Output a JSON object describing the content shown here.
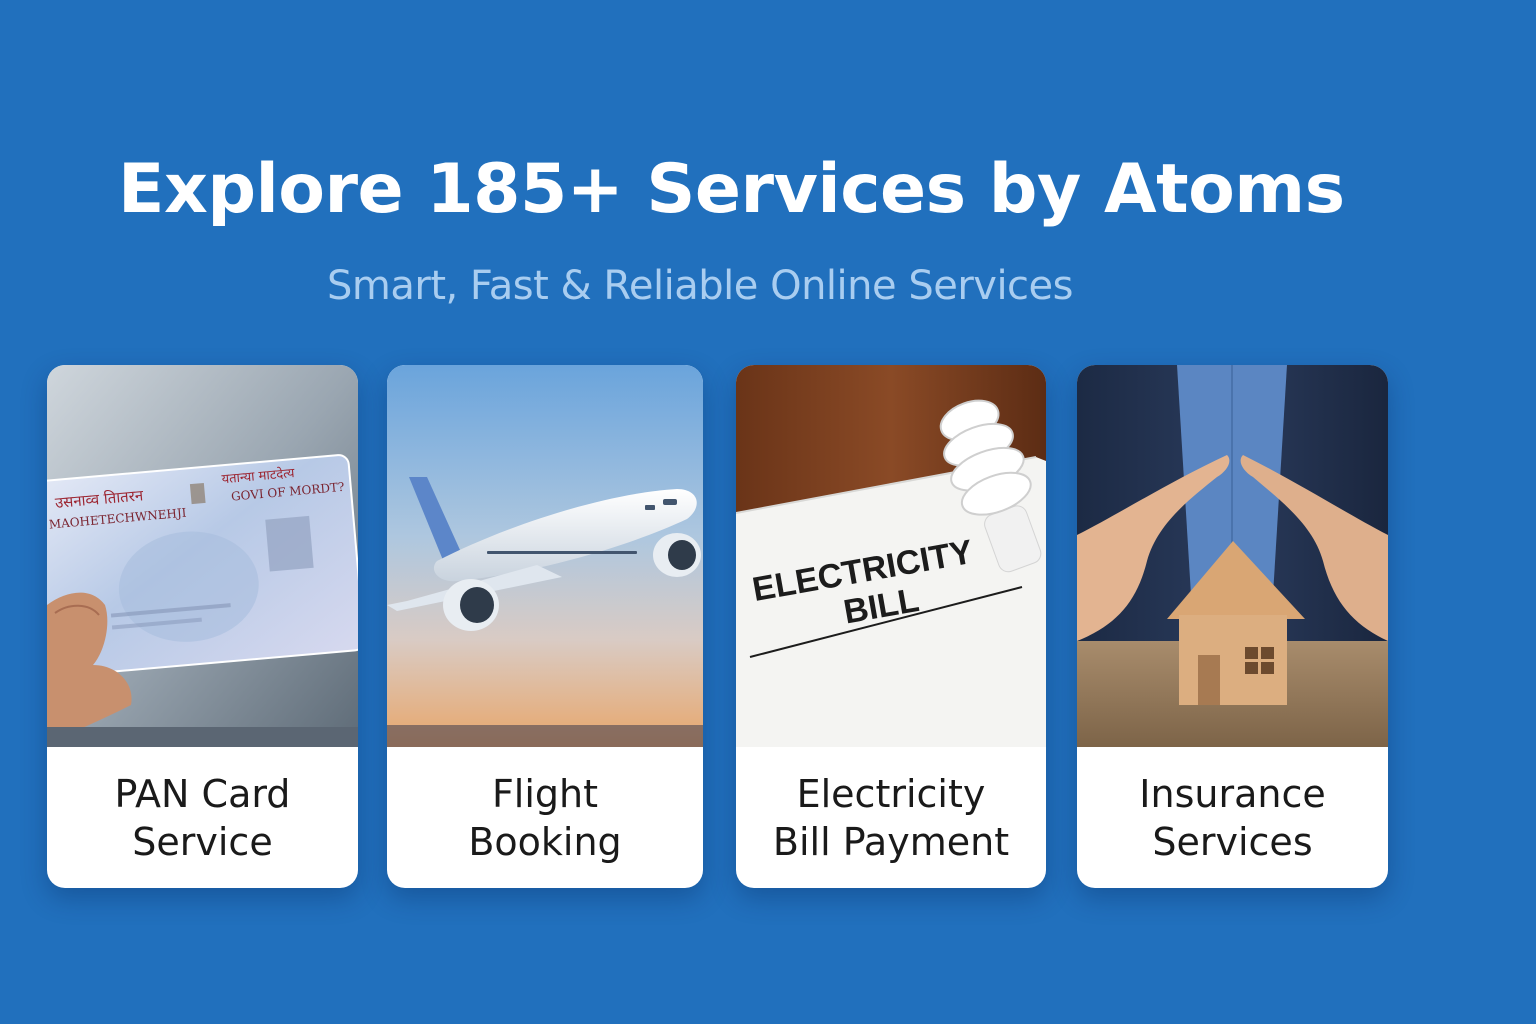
{
  "hero": {
    "title": "Explore 185+ Services by Atoms",
    "subtitle": "Smart, Fast & Reliable Online Services"
  },
  "colors": {
    "background": "#2170bd",
    "title": "#ffffff",
    "subtitle": "#a9cdf0",
    "card": "#ffffff",
    "card_text": "#1a1a1a"
  },
  "services": [
    {
      "label_line1": "PAN Card",
      "label_line2": "Service",
      "image_icon": "pan-card-photo",
      "image_text": {
        "hindi_left": "उसनाव्व तिातरन",
        "hindi_right": "यतान्या माटदेत्य",
        "line_left": "MAOHETECHWNEHJI",
        "line_right": "GOVI OF MORDT?"
      }
    },
    {
      "label_line1": "Flight",
      "label_line2": "Booking",
      "image_icon": "airplane-photo"
    },
    {
      "label_line1": "Electricity",
      "label_line2": "Bill Payment",
      "image_icon": "electricity-bill-photo",
      "image_text": {
        "line1": "ELECTRICITY",
        "line2": "BILL"
      }
    },
    {
      "label_line1": "Insurance",
      "label_line2": "Services",
      "image_icon": "house-in-hands-photo"
    }
  ]
}
